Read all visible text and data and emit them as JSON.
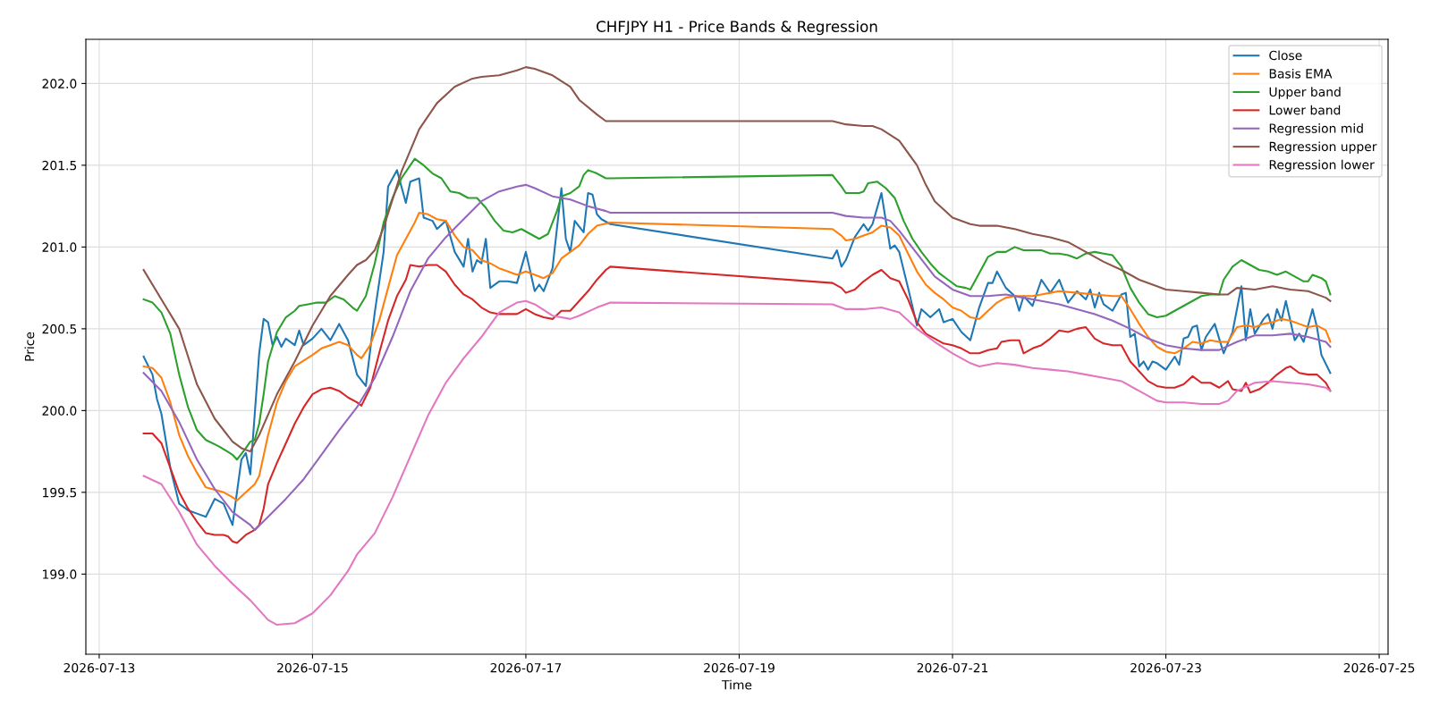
{
  "chart_data": {
    "type": "line",
    "title": "CHFJPY H1 - Price Bands & Regression",
    "xlabel": "Time",
    "ylabel": "Price",
    "xlim": [
      "2026-07-12T21:00",
      "2026-07-25T02:00"
    ],
    "xticks": [
      "2026-07-13",
      "2026-07-15",
      "2026-07-17",
      "2026-07-19",
      "2026-07-21",
      "2026-07-23",
      "2026-07-25"
    ],
    "ylim": [
      198.51,
      202.27
    ],
    "yticks": [
      {
        "value": 199,
        "label": "199.0"
      },
      {
        "value": 199.5,
        "label": "199.5"
      },
      {
        "value": 200,
        "label": "200.0"
      },
      {
        "value": 200.5,
        "label": "200.5"
      },
      {
        "value": 201,
        "label": "201.0"
      },
      {
        "value": 201.5,
        "label": "201.5"
      },
      {
        "value": 202,
        "label": "202.0"
      }
    ],
    "grid": true,
    "legend": "top right",
    "line_style": "solid",
    "marker": "none",
    "series": [
      {
        "name": "Close",
        "color": "#1f77b4",
        "x": [
          "2026-07-13T10:00",
          "2026-07-13T12:00",
          "2026-07-13T13:00",
          "2026-07-13T14:00",
          "2026-07-13T16:00",
          "2026-07-13T18:00",
          "2026-07-13T20:00",
          "2026-07-13T22:00",
          "2026-07-14T00:00",
          "2026-07-14T02:00",
          "2026-07-14T04:00",
          "2026-07-14T06:00",
          "2026-07-14T08:00",
          "2026-07-14T09:00",
          "2026-07-14T10:00",
          "2026-07-14T12:00",
          "2026-07-14T13:00",
          "2026-07-14T14:00",
          "2026-07-14T15:00",
          "2026-07-14T16:00",
          "2026-07-14T17:00",
          "2026-07-14T18:00",
          "2026-07-14T20:00",
          "2026-07-14T21:00",
          "2026-07-14T22:00",
          "2026-07-15T00:00",
          "2026-07-15T02:00",
          "2026-07-15T04:00",
          "2026-07-15T06:00",
          "2026-07-15T08:00",
          "2026-07-15T10:00",
          "2026-07-15T12:00",
          "2026-07-15T14:00",
          "2026-07-15T16:00",
          "2026-07-15T17:00",
          "2026-07-15T19:00",
          "2026-07-15T21:00",
          "2026-07-15T22:00",
          "2026-07-16T00:00",
          "2026-07-16T01:00",
          "2026-07-16T03:00",
          "2026-07-16T04:00",
          "2026-07-16T06:00",
          "2026-07-16T08:00",
          "2026-07-16T10:00",
          "2026-07-16T11:00",
          "2026-07-16T12:00",
          "2026-07-16T13:00",
          "2026-07-16T14:00",
          "2026-07-16T15:00",
          "2026-07-16T16:00",
          "2026-07-16T18:00",
          "2026-07-16T20:00",
          "2026-07-16T22:00",
          "2026-07-17T00:00",
          "2026-07-17T02:00",
          "2026-07-17T03:00",
          "2026-07-17T04:00",
          "2026-07-17T06:00",
          "2026-07-17T08:00",
          "2026-07-17T09:00",
          "2026-07-17T10:00",
          "2026-07-17T11:00",
          "2026-07-17T13:00",
          "2026-07-17T14:00",
          "2026-07-17T15:00",
          "2026-07-17T16:00",
          "2026-07-17T17:00",
          "2026-07-17T19:00",
          "2026-07-19T21:00",
          "2026-07-19T22:00",
          "2026-07-19T23:00",
          "2026-07-20T00:00",
          "2026-07-20T02:00",
          "2026-07-20T04:00",
          "2026-07-20T05:00",
          "2026-07-20T06:00",
          "2026-07-20T08:00",
          "2026-07-20T10:00",
          "2026-07-20T11:00",
          "2026-07-20T12:00",
          "2026-07-20T14:00",
          "2026-07-20T16:00",
          "2026-07-20T17:00",
          "2026-07-20T19:00",
          "2026-07-20T21:00",
          "2026-07-20T22:00",
          "2026-07-21T00:00",
          "2026-07-21T02:00",
          "2026-07-21T04:00",
          "2026-07-21T06:00",
          "2026-07-21T08:00",
          "2026-07-21T09:00",
          "2026-07-21T10:00",
          "2026-07-21T12:00",
          "2026-07-21T14:00",
          "2026-07-21T15:00",
          "2026-07-21T16:00",
          "2026-07-21T18:00",
          "2026-07-21T20:00",
          "2026-07-21T22:00",
          "2026-07-22T00:00",
          "2026-07-22T02:00",
          "2026-07-22T04:00",
          "2026-07-22T06:00",
          "2026-07-22T07:00",
          "2026-07-22T08:00",
          "2026-07-22T09:00",
          "2026-07-22T10:00",
          "2026-07-22T12:00",
          "2026-07-22T14:00",
          "2026-07-22T15:00",
          "2026-07-22T16:00",
          "2026-07-22T17:00",
          "2026-07-22T18:00",
          "2026-07-22T19:00",
          "2026-07-22T20:00",
          "2026-07-22T21:00",
          "2026-07-22T22:00",
          "2026-07-23T00:00",
          "2026-07-23T02:00",
          "2026-07-23T03:00",
          "2026-07-23T04:00",
          "2026-07-23T05:00",
          "2026-07-23T06:00",
          "2026-07-23T07:00",
          "2026-07-23T08:00",
          "2026-07-23T09:00",
          "2026-07-23T11:00",
          "2026-07-23T13:00",
          "2026-07-23T15:00",
          "2026-07-23T17:00",
          "2026-07-23T18:00",
          "2026-07-23T19:00",
          "2026-07-23T20:00",
          "2026-07-23T22:00",
          "2026-07-23T23:00",
          "2026-07-24T00:00",
          "2026-07-24T01:00",
          "2026-07-24T02:00",
          "2026-07-24T03:00",
          "2026-07-24T05:00",
          "2026-07-24T06:00",
          "2026-07-24T07:00",
          "2026-07-24T09:00",
          "2026-07-24T10:00",
          "2026-07-24T11:00",
          "2026-07-24T13:00"
        ],
        "values": [
          200.33,
          200.22,
          200.07,
          199.98,
          199.65,
          199.43,
          199.39,
          199.37,
          199.35,
          199.46,
          199.43,
          199.3,
          199.7,
          199.74,
          199.61,
          200.35,
          200.56,
          200.54,
          200.4,
          200.45,
          200.39,
          200.44,
          200.4,
          200.49,
          200.4,
          200.44,
          200.5,
          200.43,
          200.53,
          200.43,
          200.22,
          200.15,
          200.6,
          200.97,
          201.37,
          201.47,
          201.27,
          201.4,
          201.42,
          201.18,
          201.16,
          201.11,
          201.16,
          200.97,
          200.88,
          201.05,
          200.85,
          200.92,
          200.9,
          201.05,
          200.75,
          200.79,
          200.79,
          200.78,
          200.97,
          200.73,
          200.77,
          200.73,
          200.87,
          201.36,
          201.05,
          200.97,
          201.16,
          201.09,
          201.33,
          201.32,
          201.2,
          201.17,
          201.14,
          200.93,
          200.98,
          200.88,
          200.92,
          201.06,
          201.14,
          201.1,
          201.14,
          201.33,
          200.99,
          201.01,
          200.97,
          200.75,
          200.52,
          200.62,
          200.57,
          200.62,
          200.54,
          200.56,
          200.48,
          200.43,
          200.63,
          200.78,
          200.78,
          200.85,
          200.75,
          200.7,
          200.61,
          200.7,
          200.64,
          200.8,
          200.72,
          200.8,
          200.66,
          200.73,
          200.68,
          200.74,
          200.63,
          200.72,
          200.65,
          200.61,
          200.71,
          200.72,
          200.45,
          200.47,
          200.27,
          200.3,
          200.25,
          200.3,
          200.29,
          200.25,
          200.33,
          200.28,
          200.44,
          200.45,
          200.51,
          200.52,
          200.37,
          200.45,
          200.53,
          200.35,
          200.48,
          200.76,
          200.43,
          200.62,
          200.47,
          200.56,
          200.59,
          200.5,
          200.62,
          200.55,
          200.67,
          200.43,
          200.47,
          200.42,
          200.62,
          200.51,
          200.34,
          200.23
        ]
      },
      {
        "name": "Basis EMA",
        "color": "#ff7f0e",
        "x": [
          "2026-07-13T10:00",
          "2026-07-13T12:00",
          "2026-07-13T14:00",
          "2026-07-13T16:00",
          "2026-07-13T18:00",
          "2026-07-13T20:00",
          "2026-07-13T22:00",
          "2026-07-14T00:00",
          "2026-07-14T04:00",
          "2026-07-14T06:00",
          "2026-07-14T07:00",
          "2026-07-14T09:00",
          "2026-07-14T11:00",
          "2026-07-14T12:00",
          "2026-07-14T14:00",
          "2026-07-14T16:00",
          "2026-07-14T18:00",
          "2026-07-14T20:00",
          "2026-07-15T00:00",
          "2026-07-15T02:00",
          "2026-07-15T04:00",
          "2026-07-15T06:00",
          "2026-07-15T08:00",
          "2026-07-15T10:00",
          "2026-07-15T11:00",
          "2026-07-15T13:00",
          "2026-07-15T15:00",
          "2026-07-15T17:00",
          "2026-07-15T19:00",
          "2026-07-15T21:00",
          "2026-07-15T23:00",
          "2026-07-16T00:00",
          "2026-07-16T02:00",
          "2026-07-16T04:00",
          "2026-07-16T06:00",
          "2026-07-16T08:00",
          "2026-07-16T10:00",
          "2026-07-16T12:00",
          "2026-07-16T14:00",
          "2026-07-16T16:00",
          "2026-07-16T18:00",
          "2026-07-16T20:00",
          "2026-07-16T22:00",
          "2026-07-17T00:00",
          "2026-07-17T02:00",
          "2026-07-17T04:00",
          "2026-07-17T06:00",
          "2026-07-17T08:00",
          "2026-07-17T10:00",
          "2026-07-17T12:00",
          "2026-07-17T14:00",
          "2026-07-17T16:00",
          "2026-07-17T19:00",
          "2026-07-19T21:00",
          "2026-07-19T23:00",
          "2026-07-20T00:00",
          "2026-07-20T02:00",
          "2026-07-20T04:00",
          "2026-07-20T06:00",
          "2026-07-20T08:00",
          "2026-07-20T10:00",
          "2026-07-20T12:00",
          "2026-07-20T14:00",
          "2026-07-20T16:00",
          "2026-07-20T18:00",
          "2026-07-20T20:00",
          "2026-07-20T22:00",
          "2026-07-21T00:00",
          "2026-07-21T02:00",
          "2026-07-21T04:00",
          "2026-07-21T06:00",
          "2026-07-21T08:00",
          "2026-07-21T10:00",
          "2026-07-21T12:00",
          "2026-07-21T14:00",
          "2026-07-21T16:00",
          "2026-07-21T18:00",
          "2026-07-21T20:00",
          "2026-07-21T22:00",
          "2026-07-22T00:00",
          "2026-07-22T04:00",
          "2026-07-22T08:00",
          "2026-07-22T12:00",
          "2026-07-22T14:00",
          "2026-07-22T16:00",
          "2026-07-22T18:00",
          "2026-07-22T20:00",
          "2026-07-22T22:00",
          "2026-07-23T00:00",
          "2026-07-23T02:00",
          "2026-07-23T04:00",
          "2026-07-23T06:00",
          "2026-07-23T08:00",
          "2026-07-23T10:00",
          "2026-07-23T12:00",
          "2026-07-23T14:00",
          "2026-07-23T16:00",
          "2026-07-23T18:00",
          "2026-07-23T20:00",
          "2026-07-23T22:00",
          "2026-07-24T00:00",
          "2026-07-24T02:00",
          "2026-07-24T04:00",
          "2026-07-24T06:00",
          "2026-07-24T08:00",
          "2026-07-24T10:00",
          "2026-07-24T12:00",
          "2026-07-24T13:00"
        ],
        "values": [
          200.27,
          200.26,
          200.2,
          200.05,
          199.85,
          199.72,
          199.62,
          199.53,
          199.5,
          199.47,
          199.45,
          199.5,
          199.55,
          199.6,
          199.85,
          200.05,
          200.18,
          200.27,
          200.34,
          200.38,
          200.4,
          200.42,
          200.4,
          200.34,
          200.32,
          200.4,
          200.55,
          200.75,
          200.95,
          201.05,
          201.15,
          201.21,
          201.2,
          201.17,
          201.16,
          201.07,
          201.0,
          200.98,
          200.92,
          200.9,
          200.87,
          200.85,
          200.83,
          200.85,
          200.83,
          200.81,
          200.84,
          200.93,
          200.97,
          201.01,
          201.08,
          201.13,
          201.15,
          201.11,
          201.07,
          201.04,
          201.05,
          201.07,
          201.09,
          201.13,
          201.12,
          201.07,
          200.96,
          200.85,
          200.77,
          200.72,
          200.68,
          200.63,
          200.61,
          200.57,
          200.56,
          200.61,
          200.66,
          200.69,
          200.7,
          200.7,
          200.7,
          200.71,
          200.72,
          200.73,
          200.72,
          200.71,
          200.7,
          200.7,
          200.62,
          200.53,
          200.45,
          200.39,
          200.36,
          200.35,
          200.38,
          200.42,
          200.41,
          200.43,
          200.42,
          200.42,
          200.51,
          200.52,
          200.51,
          200.53,
          200.54,
          200.56,
          200.55,
          200.53,
          200.51,
          200.52,
          200.49,
          200.42
        ]
      },
      {
        "name": "Upper band",
        "color": "#2ca02c",
        "x": [
          "2026-07-13T10:00",
          "2026-07-13T12:00",
          "2026-07-13T14:00",
          "2026-07-13T16:00",
          "2026-07-13T18:00",
          "2026-07-13T20:00",
          "2026-07-13T22:00",
          "2026-07-14T00:00",
          "2026-07-14T03:00",
          "2026-07-14T06:00",
          "2026-07-14T07:00",
          "2026-07-14T09:00",
          "2026-07-14T10:00",
          "2026-07-14T11:00",
          "2026-07-14T12:00",
          "2026-07-14T13:00",
          "2026-07-14T14:00",
          "2026-07-14T16:00",
          "2026-07-14T18:00",
          "2026-07-14T20:00",
          "2026-07-14T21:00",
          "2026-07-14T23:00",
          "2026-07-15T01:00",
          "2026-07-15T03:00",
          "2026-07-15T05:00",
          "2026-07-15T07:00",
          "2026-07-15T09:00",
          "2026-07-15T10:00",
          "2026-07-15T12:00",
          "2026-07-15T14:00",
          "2026-07-15T16:00",
          "2026-07-15T18:00",
          "2026-07-15T20:00",
          "2026-07-15T22:00",
          "2026-07-15T23:00",
          "2026-07-16T01:00",
          "2026-07-16T03:00",
          "2026-07-16T05:00",
          "2026-07-16T07:00",
          "2026-07-16T09:00",
          "2026-07-16T11:00",
          "2026-07-16T13:00",
          "2026-07-16T15:00",
          "2026-07-16T17:00",
          "2026-07-16T19:00",
          "2026-07-16T21:00",
          "2026-07-16T23:00",
          "2026-07-17T01:00",
          "2026-07-17T03:00",
          "2026-07-17T05:00",
          "2026-07-17T07:00",
          "2026-07-17T08:00",
          "2026-07-17T10:00",
          "2026-07-17T12:00",
          "2026-07-17T13:00",
          "2026-07-17T14:00",
          "2026-07-17T16:00",
          "2026-07-17T18:00",
          "2026-07-17T19:00",
          "2026-07-19T21:00",
          "2026-07-19T23:00",
          "2026-07-20T00:00",
          "2026-07-20T03:00",
          "2026-07-20T04:00",
          "2026-07-20T05:00",
          "2026-07-20T07:00",
          "2026-07-20T09:00",
          "2026-07-20T11:00",
          "2026-07-20T13:00",
          "2026-07-20T15:00",
          "2026-07-20T17:00",
          "2026-07-20T19:00",
          "2026-07-20T21:00",
          "2026-07-20T23:00",
          "2026-07-21T01:00",
          "2026-07-21T03:00",
          "2026-07-21T04:00",
          "2026-07-21T06:00",
          "2026-07-21T08:00",
          "2026-07-21T10:00",
          "2026-07-21T12:00",
          "2026-07-21T14:00",
          "2026-07-21T16:00",
          "2026-07-21T18:00",
          "2026-07-21T20:00",
          "2026-07-21T22:00",
          "2026-07-22T00:00",
          "2026-07-22T02:00",
          "2026-07-22T04:00",
          "2026-07-22T06:00",
          "2026-07-22T08:00",
          "2026-07-22T10:00",
          "2026-07-22T12:00",
          "2026-07-22T14:00",
          "2026-07-22T16:00",
          "2026-07-22T18:00",
          "2026-07-22T20:00",
          "2026-07-22T22:00",
          "2026-07-23T00:00",
          "2026-07-23T02:00",
          "2026-07-23T04:00",
          "2026-07-23T06:00",
          "2026-07-23T08:00",
          "2026-07-23T10:00",
          "2026-07-23T12:00",
          "2026-07-23T13:00",
          "2026-07-23T15:00",
          "2026-07-23T17:00",
          "2026-07-23T19:00",
          "2026-07-23T21:00",
          "2026-07-23T23:00",
          "2026-07-24T01:00",
          "2026-07-24T03:00",
          "2026-07-24T05:00",
          "2026-07-24T07:00",
          "2026-07-24T08:00",
          "2026-07-24T09:00",
          "2026-07-24T11:00",
          "2026-07-24T12:00",
          "2026-07-24T13:00"
        ],
        "values": [
          200.68,
          200.66,
          200.6,
          200.47,
          200.22,
          200.02,
          199.88,
          199.82,
          199.78,
          199.73,
          199.7,
          199.77,
          199.81,
          199.82,
          199.92,
          200.1,
          200.3,
          200.48,
          200.57,
          200.61,
          200.64,
          200.65,
          200.66,
          200.66,
          200.7,
          200.68,
          200.63,
          200.61,
          200.7,
          200.9,
          201.15,
          201.3,
          201.42,
          201.5,
          201.54,
          201.5,
          201.45,
          201.42,
          201.34,
          201.33,
          201.3,
          201.3,
          201.24,
          201.16,
          201.1,
          201.09,
          201.11,
          201.08,
          201.05,
          201.08,
          201.22,
          201.31,
          201.33,
          201.37,
          201.44,
          201.47,
          201.45,
          201.42,
          201.42,
          201.44,
          201.37,
          201.33,
          201.33,
          201.34,
          201.39,
          201.4,
          201.36,
          201.3,
          201.16,
          201.05,
          200.97,
          200.9,
          200.84,
          200.8,
          200.76,
          200.75,
          200.74,
          200.84,
          200.94,
          200.97,
          200.97,
          201.0,
          200.98,
          200.98,
          200.98,
          200.96,
          200.96,
          200.95,
          200.93,
          200.96,
          200.97,
          200.96,
          200.95,
          200.88,
          200.75,
          200.66,
          200.59,
          200.57,
          200.58,
          200.61,
          200.64,
          200.67,
          200.7,
          200.71,
          200.71,
          200.8,
          200.88,
          200.92,
          200.89,
          200.86,
          200.85,
          200.83,
          200.85,
          200.82,
          200.79,
          200.79,
          200.83,
          200.81,
          200.79,
          200.71
        ]
      },
      {
        "name": "Lower band",
        "color": "#d62728",
        "x": [
          "2026-07-13T10:00",
          "2026-07-13T12:00",
          "2026-07-13T14:00",
          "2026-07-13T16:00",
          "2026-07-13T18:00",
          "2026-07-13T20:00",
          "2026-07-13T22:00",
          "2026-07-14T00:00",
          "2026-07-14T02:00",
          "2026-07-14T04:00",
          "2026-07-14T05:00",
          "2026-07-14T06:00",
          "2026-07-14T07:00",
          "2026-07-14T09:00",
          "2026-07-14T11:00",
          "2026-07-14T12:00",
          "2026-07-14T13:00",
          "2026-07-14T14:00",
          "2026-07-14T16:00",
          "2026-07-14T18:00",
          "2026-07-14T20:00",
          "2026-07-14T22:00",
          "2026-07-15T00:00",
          "2026-07-15T02:00",
          "2026-07-15T04:00",
          "2026-07-15T06:00",
          "2026-07-15T08:00",
          "2026-07-15T10:00",
          "2026-07-15T11:00",
          "2026-07-15T13:00",
          "2026-07-15T15:00",
          "2026-07-15T17:00",
          "2026-07-15T19:00",
          "2026-07-15T21:00",
          "2026-07-15T22:00",
          "2026-07-16T00:00",
          "2026-07-16T02:00",
          "2026-07-16T04:00",
          "2026-07-16T06:00",
          "2026-07-16T08:00",
          "2026-07-16T10:00",
          "2026-07-16T12:00",
          "2026-07-16T14:00",
          "2026-07-16T16:00",
          "2026-07-16T18:00",
          "2026-07-16T20:00",
          "2026-07-16T22:00",
          "2026-07-17T00:00",
          "2026-07-17T02:00",
          "2026-07-17T04:00",
          "2026-07-17T06:00",
          "2026-07-17T08:00",
          "2026-07-17T10:00",
          "2026-07-17T12:00",
          "2026-07-17T14:00",
          "2026-07-17T16:00",
          "2026-07-17T18:00",
          "2026-07-17T19:00",
          "2026-07-19T21:00",
          "2026-07-19T23:00",
          "2026-07-20T00:00",
          "2026-07-20T02:00",
          "2026-07-20T04:00",
          "2026-07-20T06:00",
          "2026-07-20T08:00",
          "2026-07-20T10:00",
          "2026-07-20T12:00",
          "2026-07-20T14:00",
          "2026-07-20T16:00",
          "2026-07-20T18:00",
          "2026-07-20T20:00",
          "2026-07-20T22:00",
          "2026-07-21T00:00",
          "2026-07-21T02:00",
          "2026-07-21T04:00",
          "2026-07-21T06:00",
          "2026-07-21T08:00",
          "2026-07-21T10:00",
          "2026-07-21T11:00",
          "2026-07-21T13:00",
          "2026-07-21T15:00",
          "2026-07-21T16:00",
          "2026-07-21T18:00",
          "2026-07-21T20:00",
          "2026-07-21T22:00",
          "2026-07-22T00:00",
          "2026-07-22T02:00",
          "2026-07-22T04:00",
          "2026-07-22T06:00",
          "2026-07-22T08:00",
          "2026-07-22T10:00",
          "2026-07-22T12:00",
          "2026-07-22T14:00",
          "2026-07-22T16:00",
          "2026-07-22T18:00",
          "2026-07-22T20:00",
          "2026-07-22T22:00",
          "2026-07-23T00:00",
          "2026-07-23T02:00",
          "2026-07-23T04:00",
          "2026-07-23T06:00",
          "2026-07-23T08:00",
          "2026-07-23T10:00",
          "2026-07-23T12:00",
          "2026-07-23T14:00",
          "2026-07-23T15:00",
          "2026-07-23T17:00",
          "2026-07-23T18:00",
          "2026-07-23T19:00",
          "2026-07-23T21:00",
          "2026-07-23T23:00",
          "2026-07-24T01:00",
          "2026-07-24T03:00",
          "2026-07-24T04:00",
          "2026-07-24T06:00",
          "2026-07-24T08:00",
          "2026-07-24T10:00",
          "2026-07-24T12:00",
          "2026-07-24T13:00"
        ],
        "values": [
          199.86,
          199.86,
          199.8,
          199.65,
          199.5,
          199.4,
          199.32,
          199.25,
          199.24,
          199.24,
          199.23,
          199.2,
          199.19,
          199.24,
          199.27,
          199.3,
          199.4,
          199.55,
          199.68,
          199.8,
          199.92,
          200.02,
          200.1,
          200.13,
          200.14,
          200.12,
          200.08,
          200.05,
          200.03,
          200.14,
          200.35,
          200.55,
          200.7,
          200.8,
          200.89,
          200.88,
          200.89,
          200.89,
          200.85,
          200.77,
          200.71,
          200.68,
          200.63,
          200.6,
          200.59,
          200.59,
          200.59,
          200.62,
          200.59,
          200.57,
          200.56,
          200.61,
          200.61,
          200.67,
          200.73,
          200.8,
          200.86,
          200.88,
          200.78,
          200.75,
          200.72,
          200.74,
          200.79,
          200.83,
          200.86,
          200.81,
          200.79,
          200.68,
          200.54,
          200.47,
          200.44,
          200.41,
          200.4,
          200.38,
          200.35,
          200.35,
          200.37,
          200.38,
          200.42,
          200.43,
          200.43,
          200.35,
          200.38,
          200.4,
          200.44,
          200.49,
          200.48,
          200.5,
          200.51,
          200.44,
          200.41,
          200.4,
          200.4,
          200.3,
          200.24,
          200.18,
          200.15,
          200.14,
          200.14,
          200.16,
          200.21,
          200.17,
          200.17,
          200.14,
          200.18,
          200.13,
          200.12,
          200.17,
          200.11,
          200.13,
          200.17,
          200.22,
          200.26,
          200.27,
          200.23,
          200.22,
          200.22,
          200.17,
          200.12
        ]
      },
      {
        "name": "Regression mid",
        "color": "#9467bd",
        "x": [
          "2026-07-13T10:00",
          "2026-07-13T14:00",
          "2026-07-13T18:00",
          "2026-07-13T22:00",
          "2026-07-14T02:00",
          "2026-07-14T06:00",
          "2026-07-14T10:00",
          "2026-07-14T11:00",
          "2026-07-14T14:00",
          "2026-07-14T18:00",
          "2026-07-14T22:00",
          "2026-07-15T02:00",
          "2026-07-15T06:00",
          "2026-07-15T10:00",
          "2026-07-15T14:00",
          "2026-07-15T18:00",
          "2026-07-15T22:00",
          "2026-07-16T02:00",
          "2026-07-16T06:00",
          "2026-07-16T10:00",
          "2026-07-16T14:00",
          "2026-07-16T18:00",
          "2026-07-16T22:00",
          "2026-07-17T00:00",
          "2026-07-17T02:00",
          "2026-07-17T06:00",
          "2026-07-17T10:00",
          "2026-07-17T14:00",
          "2026-07-17T18:00",
          "2026-07-17T19:00",
          "2026-07-19T21:00",
          "2026-07-20T00:00",
          "2026-07-20T04:00",
          "2026-07-20T08:00",
          "2026-07-20T10:00",
          "2026-07-20T12:00",
          "2026-07-20T16:00",
          "2026-07-20T20:00",
          "2026-07-21T00:00",
          "2026-07-21T04:00",
          "2026-07-21T08:00",
          "2026-07-21T12:00",
          "2026-07-21T16:00",
          "2026-07-21T20:00",
          "2026-07-22T00:00",
          "2026-07-22T04:00",
          "2026-07-22T08:00",
          "2026-07-22T12:00",
          "2026-07-22T16:00",
          "2026-07-22T20:00",
          "2026-07-23T00:00",
          "2026-07-23T04:00",
          "2026-07-23T08:00",
          "2026-07-23T12:00",
          "2026-07-23T16:00",
          "2026-07-23T20:00",
          "2026-07-24T00:00",
          "2026-07-24T04:00",
          "2026-07-24T08:00",
          "2026-07-24T12:00",
          "2026-07-24T13:00"
        ],
        "values": [
          200.23,
          200.12,
          199.93,
          199.7,
          199.52,
          199.38,
          199.3,
          199.27,
          199.35,
          199.46,
          199.58,
          199.73,
          199.88,
          200.02,
          200.2,
          200.45,
          200.73,
          200.93,
          201.06,
          201.17,
          201.28,
          201.34,
          201.37,
          201.38,
          201.36,
          201.31,
          201.29,
          201.25,
          201.22,
          201.21,
          201.21,
          201.19,
          201.18,
          201.18,
          201.16,
          201.1,
          200.96,
          200.82,
          200.74,
          200.7,
          200.7,
          200.71,
          200.69,
          200.67,
          200.65,
          200.62,
          200.59,
          200.55,
          200.5,
          200.44,
          200.4,
          200.38,
          200.37,
          200.37,
          200.42,
          200.46,
          200.46,
          200.47,
          200.45,
          200.42,
          200.39
        ]
      },
      {
        "name": "Regression upper",
        "color": "#8c564b",
        "x": [
          "2026-07-13T10:00",
          "2026-07-13T14:00",
          "2026-07-13T18:00",
          "2026-07-13T20:00",
          "2026-07-13T22:00",
          "2026-07-14T02:00",
          "2026-07-14T06:00",
          "2026-07-14T08:00",
          "2026-07-14T10:00",
          "2026-07-14T12:00",
          "2026-07-14T16:00",
          "2026-07-14T20:00",
          "2026-07-15T00:00",
          "2026-07-15T04:00",
          "2026-07-15T08:00",
          "2026-07-15T10:00",
          "2026-07-15T12:00",
          "2026-07-15T14:00",
          "2026-07-15T16:00",
          "2026-07-15T20:00",
          "2026-07-16T00:00",
          "2026-07-16T04:00",
          "2026-07-16T08:00",
          "2026-07-16T12:00",
          "2026-07-16T14:00",
          "2026-07-16T18:00",
          "2026-07-16T22:00",
          "2026-07-17T00:00",
          "2026-07-17T02:00",
          "2026-07-17T06:00",
          "2026-07-17T10:00",
          "2026-07-17T12:00",
          "2026-07-17T16:00",
          "2026-07-17T18:00",
          "2026-07-17T19:00",
          "2026-07-19T21:00",
          "2026-07-20T00:00",
          "2026-07-20T04:00",
          "2026-07-20T06:00",
          "2026-07-20T08:00",
          "2026-07-20T12:00",
          "2026-07-20T16:00",
          "2026-07-20T18:00",
          "2026-07-20T20:00",
          "2026-07-21T00:00",
          "2026-07-21T04:00",
          "2026-07-21T06:00",
          "2026-07-21T10:00",
          "2026-07-21T14:00",
          "2026-07-21T18:00",
          "2026-07-21T22:00",
          "2026-07-22T02:00",
          "2026-07-22T06:00",
          "2026-07-22T10:00",
          "2026-07-22T14:00",
          "2026-07-22T18:00",
          "2026-07-22T22:00",
          "2026-07-23T00:00",
          "2026-07-23T04:00",
          "2026-07-23T08:00",
          "2026-07-23T12:00",
          "2026-07-23T14:00",
          "2026-07-23T16:00",
          "2026-07-23T20:00",
          "2026-07-24T00:00",
          "2026-07-24T04:00",
          "2026-07-24T08:00",
          "2026-07-24T12:00",
          "2026-07-24T13:00"
        ],
        "values": [
          200.86,
          200.68,
          200.5,
          200.33,
          200.16,
          199.95,
          199.81,
          199.77,
          199.75,
          199.85,
          200.1,
          200.3,
          200.52,
          200.7,
          200.83,
          200.89,
          200.92,
          200.98,
          201.12,
          201.46,
          201.72,
          201.88,
          201.98,
          202.03,
          202.04,
          202.05,
          202.08,
          202.1,
          202.09,
          202.05,
          201.98,
          201.9,
          201.81,
          201.77,
          201.77,
          201.77,
          201.75,
          201.74,
          201.74,
          201.72,
          201.65,
          201.5,
          201.38,
          201.28,
          201.18,
          201.14,
          201.13,
          201.13,
          201.11,
          201.08,
          201.06,
          201.03,
          200.97,
          200.91,
          200.86,
          200.8,
          200.76,
          200.74,
          200.73,
          200.72,
          200.71,
          200.71,
          200.75,
          200.74,
          200.76,
          200.74,
          200.73,
          200.69,
          200.67
        ]
      },
      {
        "name": "Regression lower",
        "color": "#e377c2",
        "x": [
          "2026-07-13T10:00",
          "2026-07-13T14:00",
          "2026-07-13T18:00",
          "2026-07-13T22:00",
          "2026-07-14T02:00",
          "2026-07-14T06:00",
          "2026-07-14T10:00",
          "2026-07-14T12:00",
          "2026-07-14T14:00",
          "2026-07-14T16:00",
          "2026-07-14T20:00",
          "2026-07-15T00:00",
          "2026-07-15T04:00",
          "2026-07-15T08:00",
          "2026-07-15T10:00",
          "2026-07-15T14:00",
          "2026-07-15T18:00",
          "2026-07-15T22:00",
          "2026-07-16T02:00",
          "2026-07-16T06:00",
          "2026-07-16T10:00",
          "2026-07-16T14:00",
          "2026-07-16T18:00",
          "2026-07-16T22:00",
          "2026-07-17T00:00",
          "2026-07-17T02:00",
          "2026-07-17T06:00",
          "2026-07-17T10:00",
          "2026-07-17T12:00",
          "2026-07-17T16:00",
          "2026-07-17T19:00",
          "2026-07-19T21:00",
          "2026-07-20T00:00",
          "2026-07-20T04:00",
          "2026-07-20T08:00",
          "2026-07-20T12:00",
          "2026-07-20T16:00",
          "2026-07-20T20:00",
          "2026-07-21T00:00",
          "2026-07-21T04:00",
          "2026-07-21T06:00",
          "2026-07-21T10:00",
          "2026-07-21T14:00",
          "2026-07-21T18:00",
          "2026-07-21T22:00",
          "2026-07-22T02:00",
          "2026-07-22T06:00",
          "2026-07-22T10:00",
          "2026-07-22T14:00",
          "2026-07-22T18:00",
          "2026-07-22T22:00",
          "2026-07-23T00:00",
          "2026-07-23T04:00",
          "2026-07-23T08:00",
          "2026-07-23T12:00",
          "2026-07-23T14:00",
          "2026-07-23T16:00",
          "2026-07-23T20:00",
          "2026-07-24T00:00",
          "2026-07-24T04:00",
          "2026-07-24T08:00",
          "2026-07-24T12:00",
          "2026-07-24T13:00"
        ],
        "values": [
          199.6,
          199.55,
          199.38,
          199.18,
          199.05,
          198.94,
          198.84,
          198.78,
          198.72,
          198.69,
          198.7,
          198.76,
          198.87,
          199.02,
          199.12,
          199.25,
          199.47,
          199.72,
          199.97,
          200.17,
          200.32,
          200.45,
          200.6,
          200.66,
          200.67,
          200.65,
          200.58,
          200.56,
          200.58,
          200.63,
          200.66,
          200.65,
          200.62,
          200.62,
          200.63,
          200.6,
          200.5,
          200.42,
          200.35,
          200.29,
          200.27,
          200.29,
          200.28,
          200.26,
          200.25,
          200.24,
          200.22,
          200.2,
          200.18,
          200.12,
          200.06,
          200.05,
          200.05,
          200.04,
          200.04,
          200.06,
          200.12,
          200.17,
          200.18,
          200.17,
          200.16,
          200.14,
          200.12
        ]
      }
    ]
  }
}
